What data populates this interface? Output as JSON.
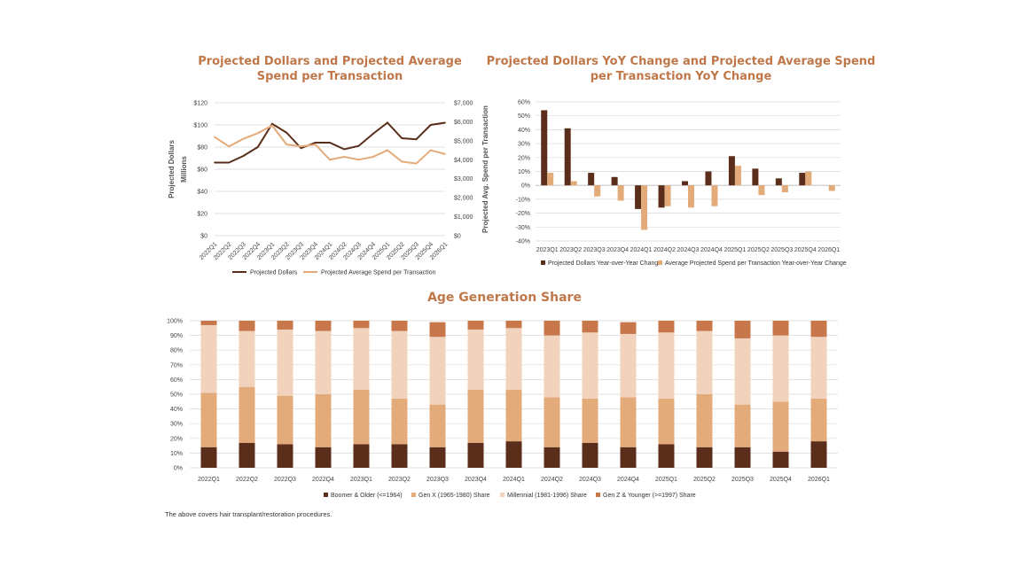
{
  "footnote": "The above covers hair transplant/restoration procedures.",
  "chart_data": [
    {
      "type": "line",
      "title_lines": [
        "Projected Dollars and Projected Average",
        "Spend per Transaction"
      ],
      "ylabel": "Projected Dollars",
      "ylabel_sub": "Millions",
      "y2label": "Projected Avg. Spend per Transaction",
      "x": [
        "2022Q1",
        "2022Q2",
        "2022Q3",
        "2022Q4",
        "2023Q1",
        "2023Q2",
        "2023Q3",
        "2023Q4",
        "2024Q1",
        "2024Q2",
        "2024Q3",
        "2024Q4",
        "2025Q1",
        "2025Q2",
        "2025Q3",
        "2025Q4",
        "2026Q1"
      ],
      "ylim": [
        0,
        120
      ],
      "yticks": [
        "$0",
        "$20",
        "$40",
        "$60",
        "$80",
        "$100",
        "$120"
      ],
      "y2lim": [
        0,
        7000
      ],
      "y2ticks": [
        "$0",
        "$1,000",
        "$2,000",
        "$3,000",
        "$4,000",
        "$5,000",
        "$6,000",
        "$7,000"
      ],
      "series": [
        {
          "name": "Projected Dollars",
          "axis": "left",
          "color": "#5a2e1b",
          "values": [
            66,
            66,
            72,
            80,
            101,
            93,
            79,
            84,
            84,
            78,
            81,
            92,
            102,
            88,
            87,
            100,
            102
          ]
        },
        {
          "name": "Projected Average Spend per Transaction",
          "axis": "right",
          "color": "#e3ab7a",
          "values": [
            5200,
            4700,
            5100,
            5400,
            5800,
            4800,
            4700,
            4800,
            4000,
            4150,
            4000,
            4150,
            4500,
            3900,
            3800,
            4500,
            4300
          ]
        }
      ],
      "legend_position": "bottom",
      "grid": true
    },
    {
      "type": "bar",
      "title_lines": [
        "Projected Dollars YoY Change and Projected Average Spend",
        "per Transaction YoY Change"
      ],
      "categories": [
        "2023Q1",
        "2023Q2",
        "2023Q3",
        "2023Q4",
        "2024Q1",
        "2024Q2",
        "2024Q3",
        "2024Q4",
        "2025Q1",
        "2025Q2",
        "2025Q3",
        "2025Q4",
        "2026Q1"
      ],
      "ylim": [
        -40,
        60
      ],
      "yticks": [
        "-40%",
        "-30%",
        "-20%",
        "-10%",
        "0%",
        "10%",
        "20%",
        "30%",
        "40%",
        "50%",
        "60%"
      ],
      "series": [
        {
          "name": "Projected Dollars Year-over-Year Change",
          "color": "#5a2e1b",
          "values": [
            54,
            41,
            9,
            6,
            -17,
            -16,
            3,
            10,
            21,
            12,
            5,
            9,
            0
          ]
        },
        {
          "name": "Average Projected Spend per Transaction Year-over-Year Change",
          "color": "#e3ab7a",
          "values": [
            9,
            3,
            -8,
            -11,
            -32,
            -15,
            -16,
            -15,
            14,
            -7,
            -5,
            10,
            -4
          ]
        }
      ],
      "legend_position": "bottom",
      "grid": true
    },
    {
      "type": "bar",
      "stacked": true,
      "title_lines": [
        "Age Generation Share"
      ],
      "categories": [
        "2022Q1",
        "2022Q2",
        "2022Q3",
        "2022Q4",
        "2023Q1",
        "2023Q2",
        "2023Q3",
        "2023Q4",
        "2024Q1",
        "2024Q2",
        "2024Q3",
        "2024Q4",
        "2025Q1",
        "2025Q2",
        "2025Q3",
        "2025Q4",
        "2026Q1"
      ],
      "ylim": [
        0,
        100
      ],
      "yticks": [
        "0%",
        "10%",
        "20%",
        "30%",
        "40%",
        "50%",
        "60%",
        "70%",
        "80%",
        "90%",
        "100%"
      ],
      "series": [
        {
          "name": "Boomer & Older (<=1964)",
          "color": "#5a2e1b",
          "values": [
            14,
            17,
            16,
            14,
            16,
            16,
            14,
            17,
            18,
            14,
            17,
            14,
            16,
            14,
            14,
            11,
            18
          ]
        },
        {
          "name": "Gen X (1965-1980) Share",
          "color": "#e3ab7a",
          "values": [
            37,
            38,
            33,
            36,
            37,
            31,
            29,
            36,
            35,
            34,
            30,
            34,
            31,
            36,
            29,
            34,
            29
          ]
        },
        {
          "name": "Millennial (1981-1996) Share",
          "color": "#f1d3bd",
          "values": [
            46,
            38,
            45,
            43,
            42,
            46,
            46,
            41,
            42,
            42,
            45,
            43,
            45,
            43,
            45,
            45,
            42
          ]
        },
        {
          "name": "Gen Z & Younger (>=1997) Share",
          "color": "#c8774a",
          "values": [
            3,
            7,
            6,
            7,
            5,
            7,
            10,
            6,
            5,
            10,
            8,
            8,
            8,
            7,
            12,
            10,
            11
          ]
        }
      ],
      "legend_position": "bottom",
      "grid": true
    }
  ]
}
